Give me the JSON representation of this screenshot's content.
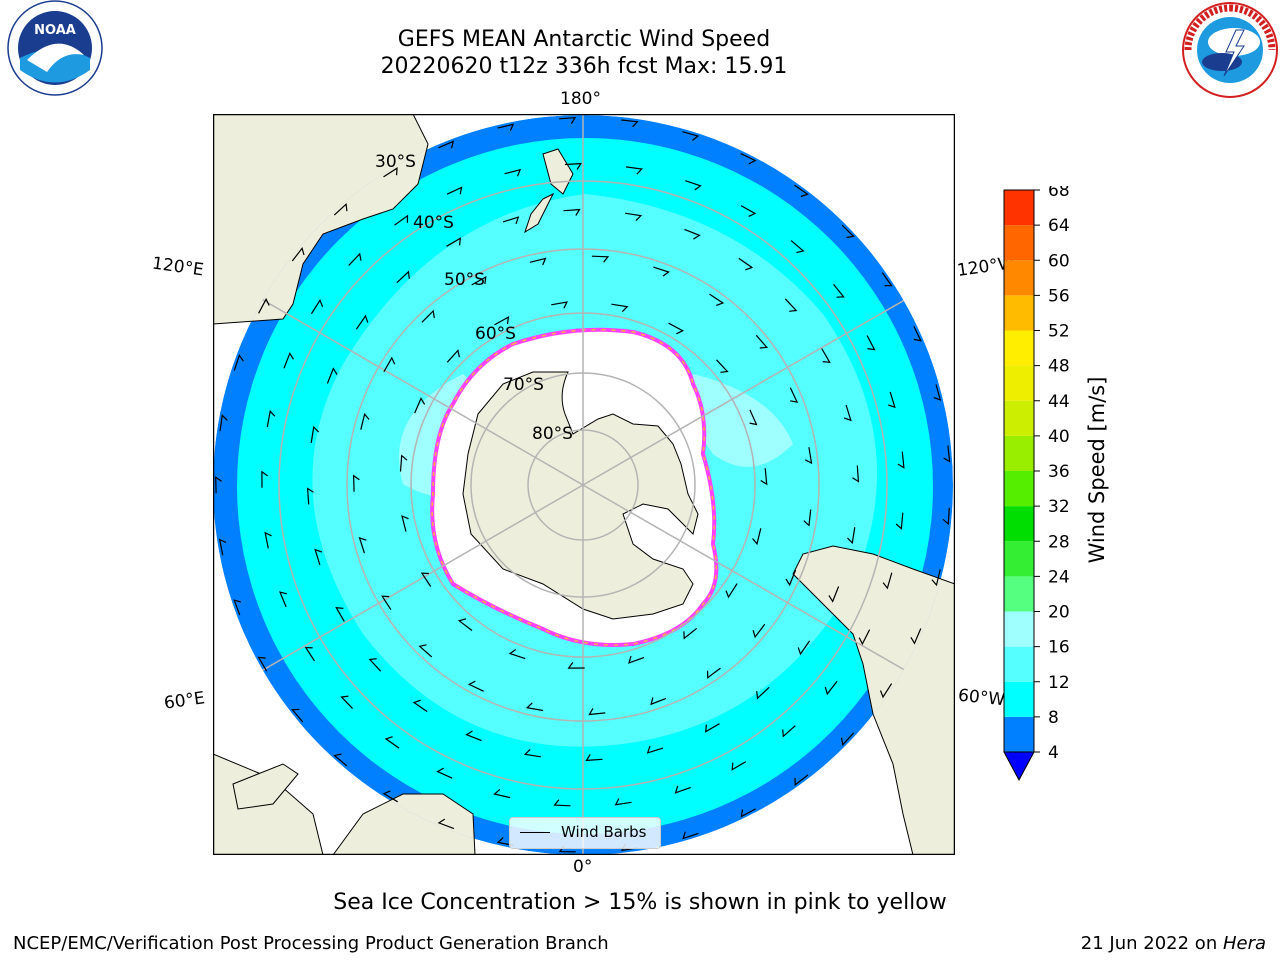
{
  "title": {
    "line1": "GEFS MEAN Antarctic Wind Speed",
    "line2": "20220620 t12z 336h fcst   Max: 15.91"
  },
  "logos": {
    "noaa": {
      "icon": "noaa-logo-icon",
      "text": "NOAA",
      "ring_text": "NATIONAL OCEANIC AND ATMOSPHERIC ADMINISTRATION · U.S. DEPARTMENT OF COMMERCE"
    },
    "nws": {
      "icon": "nws-logo-icon",
      "ring_text": "NATIONAL WEATHER SERVICE"
    }
  },
  "map": {
    "projection": "south-polar-stereographic",
    "longitude_labels": [
      "180°",
      "120°E",
      "120°W",
      "60°E",
      "60°W",
      "0°"
    ],
    "latitude_labels": [
      "30°S",
      "40°S",
      "50°S",
      "60°S",
      "70°S",
      "80°S"
    ],
    "legend_label": "Wind Barbs",
    "colors": {
      "land": "#eeeedc",
      "ocean_4_8": "#0080ff",
      "ocean_8_12": "#00ffff",
      "ocean_12_16": "#55ffff",
      "ocean_16_20": "#9fffff",
      "sea_ice": "#ffffff",
      "ice_edge_pink": "#ff40ff",
      "ice_edge_orange": "#ffb040",
      "graticule": "#b4b4b4"
    }
  },
  "colorbar": {
    "label": "Wind Speed [m/s]",
    "ticks": [
      "4",
      "8",
      "12",
      "16",
      "20",
      "24",
      "28",
      "32",
      "36",
      "40",
      "44",
      "48",
      "52",
      "56",
      "60",
      "64",
      "68"
    ],
    "colors": [
      "#0080ff",
      "#00ffff",
      "#55ffff",
      "#9fffff",
      "#55ff80",
      "#33ee33",
      "#00dd00",
      "#55ee00",
      "#99ee00",
      "#ccee00",
      "#eeee00",
      "#ffee00",
      "#ffbb00",
      "#ff8800",
      "#ff6600",
      "#ff3300",
      "#ff0000"
    ],
    "underflow_color": "#0000ff"
  },
  "note": "Sea Ice Concentration > 15% is shown in pink to yellow",
  "footer": {
    "credit": "NCEP/EMC/Verification Post Processing Product Generation Branch",
    "date": "21 Jun 2022 on ",
    "host": "Hera"
  }
}
